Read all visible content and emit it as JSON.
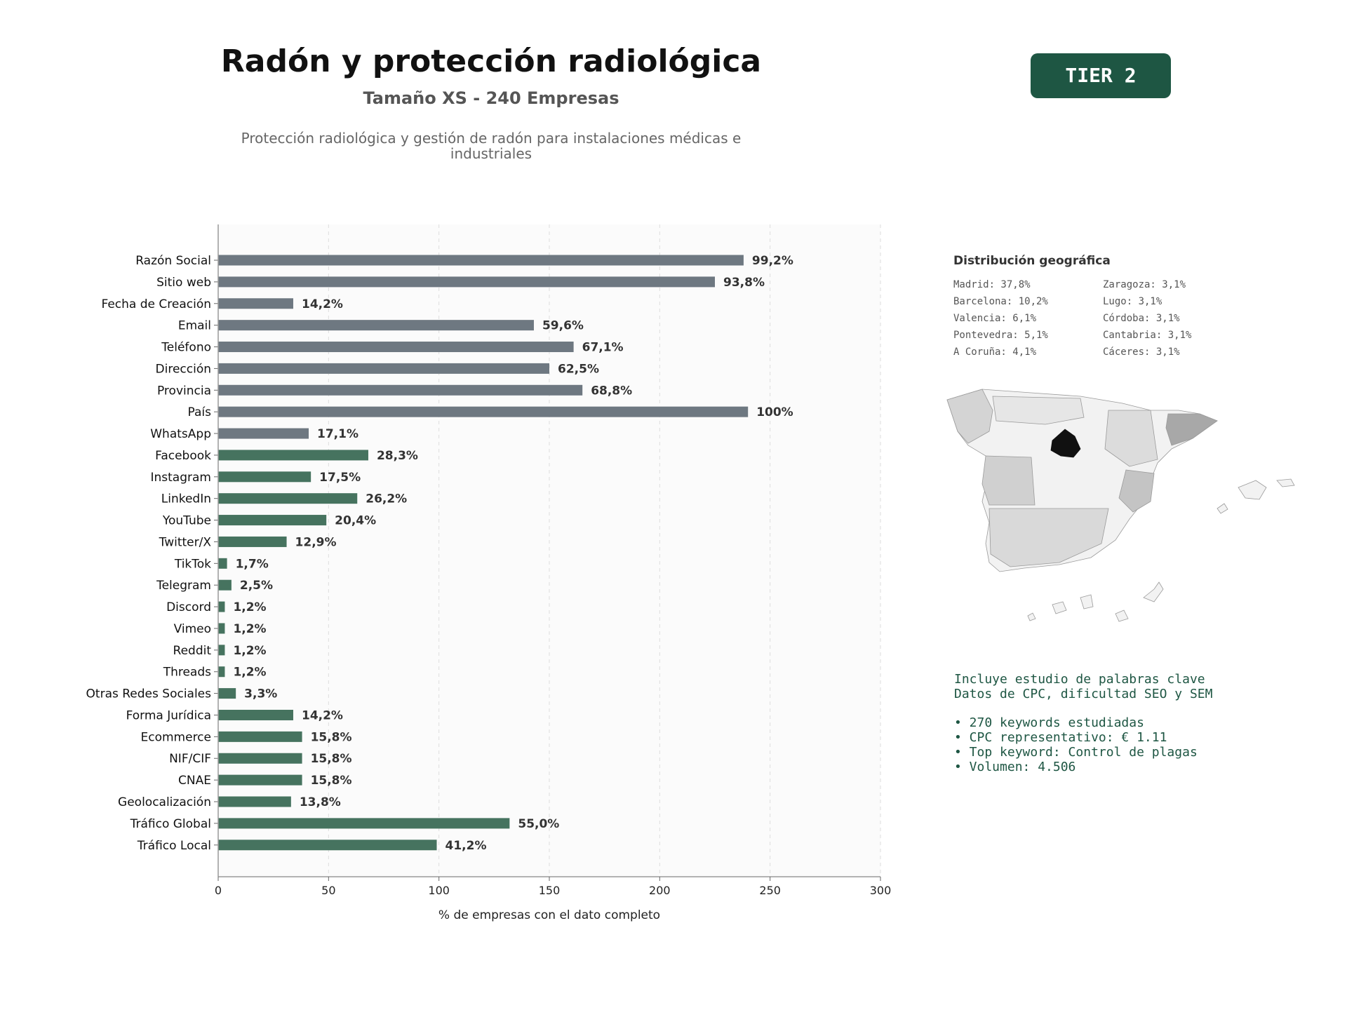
{
  "header": {
    "title": "Radón y protección radiológica",
    "subtitle": "Tamaño XS - 240 Empresas",
    "description": "Protección radiológica y gestión de radón para instalaciones médicas e industriales",
    "tier_badge": "TIER 2"
  },
  "colors": {
    "contact_bar": "#6e7881",
    "digital_bar": "#46735f",
    "accent": "#1e5643"
  },
  "chart_data": {
    "type": "bar",
    "orientation": "horizontal",
    "xlabel": "% de empresas con el dato completo",
    "xlim": [
      0,
      300
    ],
    "xticks": [
      0,
      50,
      100,
      150,
      200,
      250,
      300
    ],
    "grid": "vertical dashed",
    "categories": [
      "Razón Social",
      "Sitio web",
      "Fecha de Creación",
      "Email",
      "Teléfono",
      "Dirección",
      "Provincia",
      "País",
      "WhatsApp",
      "Facebook",
      "Instagram",
      "LinkedIn",
      "YouTube",
      "Twitter/X",
      "TikTok",
      "Telegram",
      "Discord",
      "Vimeo",
      "Reddit",
      "Threads",
      "Otras Redes Sociales",
      "Forma Jurídica",
      "Ecommerce",
      "NIF/CIF",
      "CNAE",
      "Geolocalización",
      "Tráfico Global",
      "Tráfico Local"
    ],
    "values": [
      238,
      225,
      34,
      143,
      161,
      150,
      165,
      240,
      41,
      68,
      42,
      63,
      49,
      31,
      4,
      6,
      3,
      3,
      3,
      3,
      8,
      34,
      38,
      38,
      38,
      33,
      132,
      99
    ],
    "labels": [
      "99,2%",
      "93,8%",
      "14,2%",
      "59,6%",
      "67,1%",
      "62,5%",
      "68,8%",
      "100%",
      "17,1%",
      "28,3%",
      "17,5%",
      "26,2%",
      "20,4%",
      "12,9%",
      "1,7%",
      "2,5%",
      "1,2%",
      "1,2%",
      "1,2%",
      "1,2%",
      "3,3%",
      "14,2%",
      "15,8%",
      "15,8%",
      "15,8%",
      "13,8%",
      "55,0%",
      "41,2%"
    ],
    "bar_group": [
      "contact",
      "contact",
      "contact",
      "contact",
      "contact",
      "contact",
      "contact",
      "contact",
      "contact",
      "digital",
      "digital",
      "digital",
      "digital",
      "digital",
      "digital",
      "digital",
      "digital",
      "digital",
      "digital",
      "digital",
      "digital",
      "digital",
      "digital",
      "digital",
      "digital",
      "digital",
      "digital",
      "digital"
    ]
  },
  "geo": {
    "title": "Distribución geográfica",
    "items": [
      "Madrid: 37,8%",
      "Zaragoza: 3,1%",
      "Barcelona: 10,2%",
      "Lugo: 3,1%",
      "Valencia: 6,1%",
      "Córdoba: 3,1%",
      "Pontevedra: 5,1%",
      "Cantabria: 3,1%",
      "A Coruña: 4,1%",
      "Cáceres: 3,1%"
    ]
  },
  "info": {
    "line1": "Incluye estudio de palabras clave",
    "line2": "Datos de CPC, dificultad SEO y SEM",
    "bullet1": "• 270 keywords estudiadas",
    "bullet2": "• CPC representativo: € 1.11",
    "bullet3": "• Top keyword: Control de plagas",
    "bullet4": "• Volumen: 4.506"
  }
}
